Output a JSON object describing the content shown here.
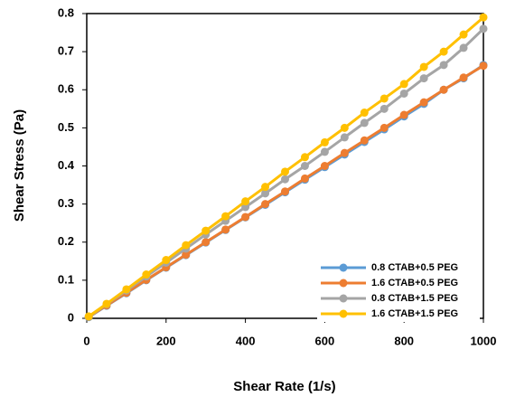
{
  "chart_data": {
    "type": "line",
    "x_label": "Shear Rate (1/s)",
    "y_label": "Shear Stress (Pa)",
    "x": [
      5,
      50,
      100,
      150,
      200,
      250,
      300,
      350,
      400,
      450,
      500,
      550,
      600,
      650,
      700,
      750,
      800,
      850,
      900,
      950,
      1000
    ],
    "series": [
      {
        "name": "0.8 CTAB+0.5 PEG",
        "color": "#5b9bd5",
        "values": [
          0.003,
          0.033,
          0.066,
          0.1,
          0.133,
          0.166,
          0.199,
          0.232,
          0.265,
          0.298,
          0.331,
          0.364,
          0.397,
          0.43,
          0.463,
          0.496,
          0.53,
          0.563,
          0.6,
          0.63,
          0.665
        ]
      },
      {
        "name": "1.6 CTAB+0.5 PEG",
        "color": "#ed7d31",
        "values": [
          0.004,
          0.034,
          0.067,
          0.101,
          0.134,
          0.167,
          0.2,
          0.233,
          0.266,
          0.3,
          0.333,
          0.367,
          0.4,
          0.434,
          0.467,
          0.5,
          0.534,
          0.567,
          0.6,
          0.632,
          0.663
        ]
      },
      {
        "name": "0.8 CTAB+1.5 PEG",
        "color": "#a5a5a5",
        "values": [
          0.004,
          0.037,
          0.073,
          0.11,
          0.146,
          0.183,
          0.22,
          0.256,
          0.292,
          0.328,
          0.365,
          0.4,
          0.437,
          0.475,
          0.513,
          0.55,
          0.59,
          0.63,
          0.665,
          0.71,
          0.76
        ]
      },
      {
        "name": "1.6 CTAB+1.5 PEG",
        "color": "#ffc000",
        "values": [
          0.005,
          0.038,
          0.076,
          0.115,
          0.153,
          0.192,
          0.23,
          0.268,
          0.307,
          0.345,
          0.385,
          0.423,
          0.462,
          0.5,
          0.54,
          0.577,
          0.615,
          0.66,
          0.7,
          0.745,
          0.79
        ]
      }
    ],
    "xlim": [
      0,
      1000
    ],
    "xticks": [
      0,
      200,
      400,
      600,
      800,
      1000
    ],
    "ylim": [
      0,
      0.8
    ],
    "yticks": [
      0,
      0.1,
      0.2,
      0.3,
      0.4,
      0.5,
      0.6,
      0.7,
      0.8
    ],
    "legend": "bottom-right"
  }
}
